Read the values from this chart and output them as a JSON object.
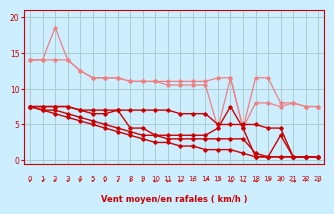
{
  "bg_color": "#cceeff",
  "grid_color": "#aacccc",
  "line_color_light": "#f08080",
  "line_color_dark": "#cc0000",
  "xlabel": "Vent moyen/en rafales ( km/h )",
  "xlim": [
    -0.5,
    23.5
  ],
  "ylim": [
    -0.5,
    21
  ],
  "yticks": [
    0,
    5,
    10,
    15,
    20
  ],
  "xticks": [
    0,
    1,
    2,
    3,
    4,
    5,
    6,
    7,
    8,
    9,
    10,
    11,
    12,
    13,
    14,
    15,
    16,
    17,
    18,
    19,
    20,
    21,
    22,
    23
  ],
  "series_light": [
    [
      14.0,
      14.0,
      18.5,
      14.0,
      12.5,
      11.5,
      11.5,
      11.5,
      11.0,
      11.0,
      11.0,
      11.0,
      11.0,
      11.0,
      11.0,
      11.5,
      11.5,
      4.5,
      11.5,
      11.5,
      8.0,
      8.0,
      7.5,
      7.5
    ],
    [
      14.0,
      14.0,
      14.0,
      14.0,
      12.5,
      11.5,
      11.5,
      11.5,
      11.0,
      11.0,
      11.0,
      10.5,
      10.5,
      10.5,
      10.5,
      4.5,
      11.5,
      4.5,
      8.0,
      8.0,
      7.5,
      8.0,
      7.5,
      7.5
    ]
  ],
  "series_dark": [
    [
      7.5,
      7.5,
      7.5,
      7.5,
      7.0,
      7.0,
      7.0,
      7.0,
      7.0,
      7.0,
      7.0,
      7.0,
      6.5,
      6.5,
      6.5,
      5.0,
      5.0,
      5.0,
      5.0,
      4.5,
      4.5,
      0.5,
      0.5,
      0.5
    ],
    [
      7.5,
      7.5,
      7.5,
      7.5,
      7.0,
      6.5,
      6.5,
      7.0,
      4.5,
      4.5,
      3.5,
      3.5,
      3.5,
      3.5,
      3.5,
      4.5,
      7.5,
      4.5,
      0.5,
      0.5,
      3.5,
      0.5,
      0.5,
      0.5
    ],
    [
      7.5,
      7.0,
      7.0,
      6.5,
      6.0,
      5.5,
      5.0,
      4.5,
      4.0,
      3.5,
      3.5,
      3.0,
      3.0,
      3.0,
      3.0,
      3.0,
      3.0,
      3.0,
      1.0,
      0.5,
      0.5,
      0.5,
      0.5,
      0.5
    ],
    [
      7.5,
      7.0,
      6.5,
      6.0,
      5.5,
      5.0,
      4.5,
      4.0,
      3.5,
      3.0,
      2.5,
      2.5,
      2.0,
      2.0,
      1.5,
      1.5,
      1.5,
      1.0,
      0.5,
      0.5,
      0.5,
      0.5,
      0.5,
      0.5
    ]
  ],
  "wind_arrows": [
    "↙",
    "↙",
    "↙",
    "↙",
    "↙",
    "↙",
    "↙",
    "↙",
    "↓",
    "↓",
    "←",
    "←",
    "←",
    "↑",
    "↗",
    "↗",
    "→",
    "→",
    "→",
    "↗",
    "↑",
    "→",
    "↑",
    "↓"
  ]
}
